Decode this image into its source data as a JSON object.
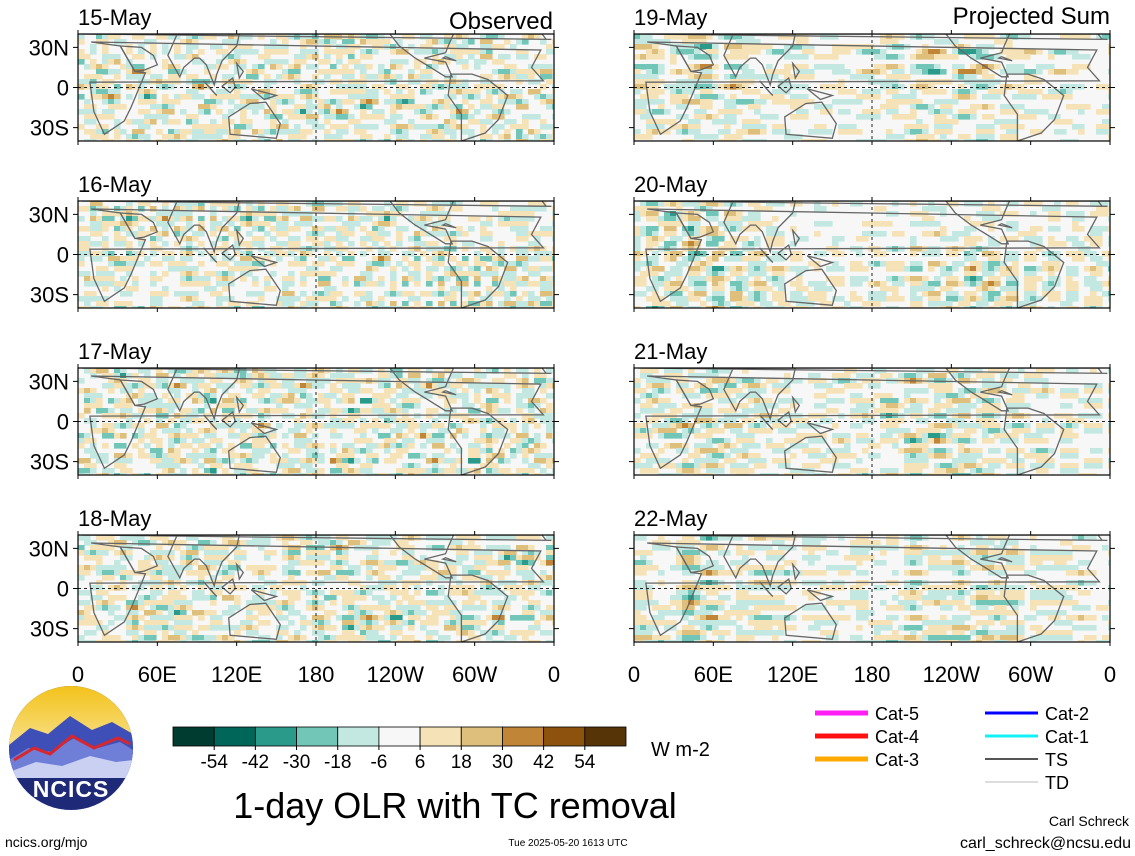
{
  "chart_data": {
    "type": "heatmap",
    "title": "1-day OLR with TC removal",
    "column_headers": [
      "Observed",
      "Projected Sum"
    ],
    "panels": [
      {
        "date": "15-May",
        "kind": "observed",
        "seed": 11
      },
      {
        "date": "16-May",
        "kind": "observed",
        "seed": 23
      },
      {
        "date": "17-May",
        "kind": "observed",
        "seed": 37
      },
      {
        "date": "18-May",
        "kind": "observed",
        "seed": 41
      },
      {
        "date": "19-May",
        "kind": "projected",
        "seed": 53
      },
      {
        "date": "20-May",
        "kind": "projected",
        "seed": 67
      },
      {
        "date": "21-May",
        "kind": "projected",
        "seed": 71
      },
      {
        "date": "22-May",
        "kind": "projected",
        "seed": 89
      }
    ],
    "x_ticks": [
      "0",
      "60E",
      "120E",
      "180",
      "120W",
      "60W",
      "0"
    ],
    "y_ticks": [
      "30N",
      "0",
      "30S"
    ],
    "xlim": [
      0,
      360
    ],
    "ylim": [
      -40,
      40
    ],
    "colorbar": {
      "unit": "W m-2",
      "tick_labels": [
        "-54",
        "-42",
        "-30",
        "-18",
        "-6",
        "6",
        "18",
        "30",
        "42",
        "54"
      ],
      "colors": [
        "#003d30",
        "#00665a",
        "#2a9a8a",
        "#72c6b8",
        "#c2e8e1",
        "#f7f7f7",
        "#f5e2b6",
        "#dfbf7c",
        "#c08536",
        "#8e520f",
        "#573408"
      ]
    },
    "legend": [
      {
        "label": "Cat-5",
        "color": "#ff1ef5"
      },
      {
        "label": "Cat-4",
        "color": "#ff1010"
      },
      {
        "label": "Cat-3",
        "color": "#ffaa00"
      },
      {
        "label": "Cat-2",
        "color": "#0000ff"
      },
      {
        "label": "Cat-1",
        "color": "#11f0f5"
      },
      {
        "label": "TS",
        "color": "#555555"
      },
      {
        "label": "TD",
        "color": "#bbbbbb"
      }
    ]
  },
  "logo": {
    "text": "NCICS"
  },
  "footer": {
    "left": "ncics.org/mjo",
    "timestamp": "Tue 2025-05-20 1613 UTC",
    "author": "Carl Schreck",
    "email": "carl_schreck@ncsu.edu"
  }
}
